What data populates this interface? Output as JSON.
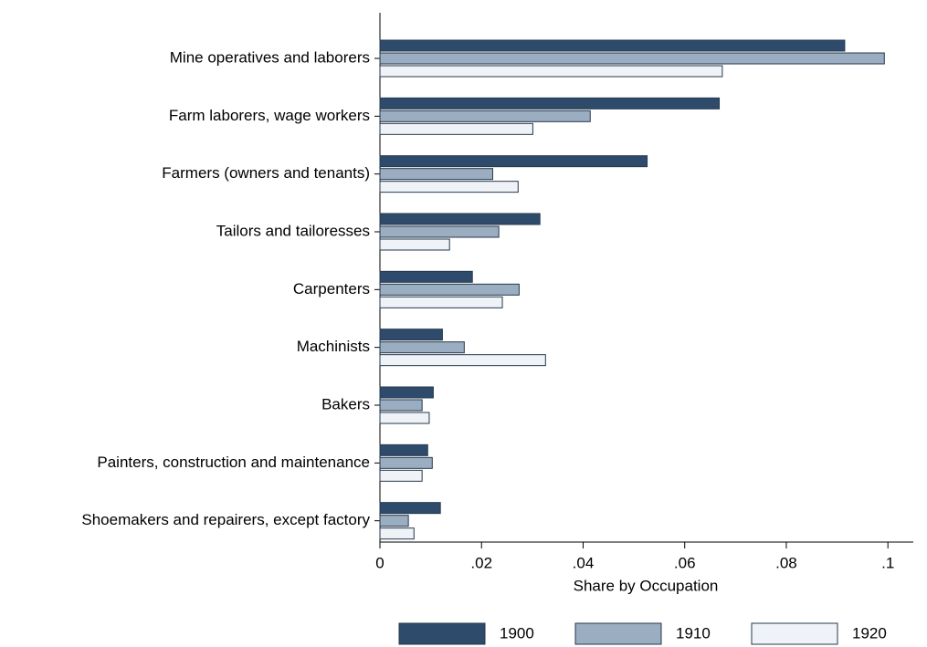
{
  "chart_data": {
    "type": "hbar",
    "x_label": "Share by Occupation",
    "categories": [
      "Mine operatives and laborers",
      "Farm laborers, wage workers",
      "Farmers (owners and tenants)",
      "Tailors and tailoresses",
      "Carpenters",
      "Machinists",
      "Bakers",
      "Painters, construction and maintenance",
      "Shoemakers and repairers, except factory"
    ],
    "series": [
      {
        "name": "1900",
        "color": "#2e4b6c",
        "values": [
          0.0915,
          0.0668,
          0.0526,
          0.0315,
          0.0182,
          0.0123,
          0.0105,
          0.0094,
          0.0119
        ]
      },
      {
        "name": "1910",
        "color": "#9badc0",
        "values": [
          0.0993,
          0.0414,
          0.0222,
          0.0234,
          0.0274,
          0.0166,
          0.0083,
          0.0103,
          0.0056
        ]
      },
      {
        "name": "1920",
        "color": "#eff3f7",
        "values": [
          0.0674,
          0.0301,
          0.0272,
          0.0137,
          0.0241,
          0.0326,
          0.0097,
          0.0083,
          0.0067
        ]
      }
    ],
    "xlim": [
      0,
      0.105
    ],
    "xticks": [
      0,
      {
        "value": 0.02,
        "label": ".02"
      },
      {
        "value": 0.04,
        "label": ".04"
      },
      {
        "value": 0.06,
        "label": ".06"
      },
      {
        "value": 0.08,
        "label": ".08"
      },
      {
        "value": 0.1,
        "label": ".1"
      }
    ],
    "legend": "bottom"
  }
}
